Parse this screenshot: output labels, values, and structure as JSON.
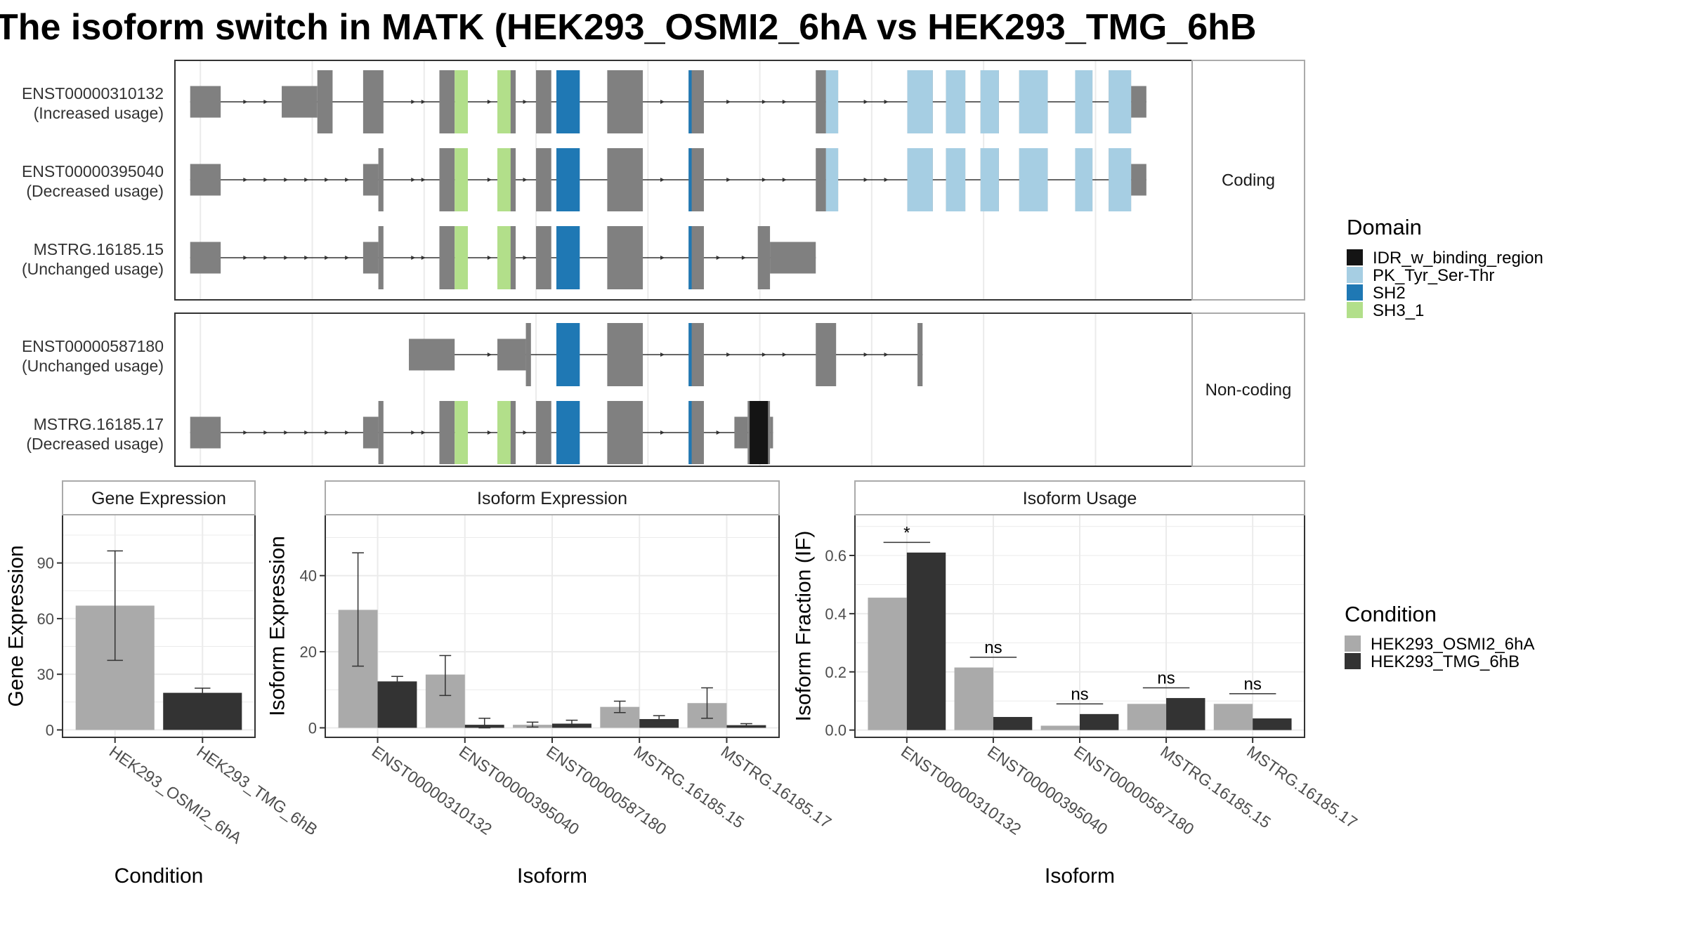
{
  "title": "The isoform switch in MATK (HEK293_OSMI2_6hA vs HEK293_TMG_6hB",
  "colors": {
    "exon": "#808080",
    "panel_border": "#333333",
    "strip_border": "#aaaaaa",
    "grid": "#ebebeb",
    "condition_a": "#aaaaaa",
    "condition_b": "#333333",
    "IDR_w_binding_region": "#141414",
    "PK_Tyr_Ser-Thr": "#a6cee3",
    "SH2": "#1f78b4",
    "SH3_1": "#b2df8a"
  },
  "structure": {
    "groups": [
      {
        "label": "Coding",
        "transcripts": [
          {
            "id": "ENST00000310132",
            "usage": "(Increased usage)",
            "exons": [
              [
                0.015,
                0.045,
                "t"
              ],
              [
                0.105,
                0.14,
                "t"
              ],
              [
                0.14,
                0.155,
                "c"
              ],
              [
                0.185,
                0.205,
                "c"
              ],
              [
                0.26,
                0.275,
                "c"
              ],
              [
                0.317,
                0.335,
                "c"
              ],
              [
                0.355,
                0.37,
                "c"
              ],
              [
                0.375,
                0.397,
                "c"
              ],
              [
                0.425,
                0.46,
                "c"
              ],
              [
                0.505,
                0.52,
                "c"
              ],
              [
                0.63,
                0.64,
                "c"
              ],
              [
                0.64,
                0.652,
                "c"
              ],
              [
                0.72,
                0.745,
                "c"
              ],
              [
                0.758,
                0.777,
                "c"
              ],
              [
                0.792,
                0.81,
                "c"
              ],
              [
                0.83,
                0.858,
                "c"
              ],
              [
                0.885,
                0.902,
                "c"
              ],
              [
                0.918,
                0.94,
                "c"
              ],
              [
                0.94,
                0.955,
                "t"
              ]
            ],
            "domains": [
              [
                0.275,
                0.288,
                "SH3_1"
              ],
              [
                0.317,
                0.33,
                "SH3_1"
              ],
              [
                0.375,
                0.398,
                "SH2"
              ],
              [
                0.505,
                0.508,
                "SH2"
              ],
              [
                0.64,
                0.652,
                "PK_Tyr_Ser-Thr"
              ],
              [
                0.72,
                0.745,
                "PK_Tyr_Ser-Thr"
              ],
              [
                0.758,
                0.777,
                "PK_Tyr_Ser-Thr"
              ],
              [
                0.792,
                0.81,
                "PK_Tyr_Ser-Thr"
              ],
              [
                0.83,
                0.858,
                "PK_Tyr_Ser-Thr"
              ],
              [
                0.885,
                0.902,
                "PK_Tyr_Ser-Thr"
              ],
              [
                0.918,
                0.94,
                "PK_Tyr_Ser-Thr"
              ]
            ],
            "arrows": [
              0.07,
              0.09,
              0.195,
              0.235,
              0.245,
              0.31,
              0.345,
              0.48,
              0.545,
              0.58,
              0.6,
              0.68,
              0.7
            ]
          },
          {
            "id": "ENST00000395040",
            "usage": "(Decreased usage)",
            "exons": [
              [
                0.015,
                0.045,
                "t"
              ],
              [
                0.185,
                0.2,
                "t"
              ],
              [
                0.2,
                0.205,
                "c"
              ],
              [
                0.26,
                0.275,
                "c"
              ],
              [
                0.317,
                0.335,
                "c"
              ],
              [
                0.355,
                0.37,
                "c"
              ],
              [
                0.375,
                0.397,
                "c"
              ],
              [
                0.425,
                0.46,
                "c"
              ],
              [
                0.505,
                0.52,
                "c"
              ],
              [
                0.63,
                0.64,
                "c"
              ],
              [
                0.64,
                0.652,
                "c"
              ],
              [
                0.72,
                0.745,
                "c"
              ],
              [
                0.758,
                0.777,
                "c"
              ],
              [
                0.792,
                0.81,
                "c"
              ],
              [
                0.83,
                0.858,
                "c"
              ],
              [
                0.885,
                0.902,
                "c"
              ],
              [
                0.918,
                0.94,
                "c"
              ],
              [
                0.94,
                0.955,
                "t"
              ]
            ],
            "domains": [
              [
                0.275,
                0.288,
                "SH3_1"
              ],
              [
                0.317,
                0.33,
                "SH3_1"
              ],
              [
                0.375,
                0.398,
                "SH2"
              ],
              [
                0.505,
                0.508,
                "SH2"
              ],
              [
                0.64,
                0.652,
                "PK_Tyr_Ser-Thr"
              ],
              [
                0.72,
                0.745,
                "PK_Tyr_Ser-Thr"
              ],
              [
                0.758,
                0.777,
                "PK_Tyr_Ser-Thr"
              ],
              [
                0.792,
                0.81,
                "PK_Tyr_Ser-Thr"
              ],
              [
                0.83,
                0.858,
                "PK_Tyr_Ser-Thr"
              ],
              [
                0.885,
                0.902,
                "PK_Tyr_Ser-Thr"
              ],
              [
                0.918,
                0.94,
                "PK_Tyr_Ser-Thr"
              ]
            ],
            "arrows": [
              0.07,
              0.09,
              0.11,
              0.13,
              0.15,
              0.17,
              0.235,
              0.245,
              0.31,
              0.345,
              0.48,
              0.545,
              0.58,
              0.6,
              0.68,
              0.7
            ]
          },
          {
            "id": "MSTRG.16185.15",
            "usage": "(Unchanged usage)",
            "exons": [
              [
                0.015,
                0.045,
                "t"
              ],
              [
                0.185,
                0.2,
                "t"
              ],
              [
                0.2,
                0.205,
                "c"
              ],
              [
                0.26,
                0.275,
                "c"
              ],
              [
                0.317,
                0.335,
                "c"
              ],
              [
                0.355,
                0.37,
                "c"
              ],
              [
                0.375,
                0.397,
                "c"
              ],
              [
                0.425,
                0.46,
                "c"
              ],
              [
                0.505,
                0.52,
                "c"
              ],
              [
                0.573,
                0.585,
                "c"
              ],
              [
                0.585,
                0.63,
                "t"
              ]
            ],
            "domains": [
              [
                0.275,
                0.288,
                "SH3_1"
              ],
              [
                0.317,
                0.33,
                "SH3_1"
              ],
              [
                0.375,
                0.398,
                "SH2"
              ],
              [
                0.505,
                0.508,
                "SH2"
              ]
            ],
            "arrows": [
              0.07,
              0.09,
              0.11,
              0.13,
              0.15,
              0.17,
              0.235,
              0.245,
              0.31,
              0.345,
              0.48,
              0.535,
              0.56
            ]
          }
        ]
      },
      {
        "label": "Non-coding",
        "transcripts": [
          {
            "id": "ENST00000587180",
            "usage": "(Unchanged usage)",
            "exons": [
              [
                0.23,
                0.275,
                "t"
              ],
              [
                0.317,
                0.345,
                "t"
              ],
              [
                0.345,
                0.35,
                "c"
              ],
              [
                0.375,
                0.397,
                "c"
              ],
              [
                0.425,
                0.46,
                "c"
              ],
              [
                0.505,
                0.52,
                "c"
              ],
              [
                0.63,
                0.65,
                "c"
              ],
              [
                0.73,
                0.735,
                "c"
              ]
            ],
            "domains": [
              [
                0.375,
                0.398,
                "SH2"
              ],
              [
                0.505,
                0.508,
                "SH2"
              ]
            ],
            "arrows": [
              0.31,
              0.48,
              0.545,
              0.58,
              0.6,
              0.68,
              0.7
            ]
          },
          {
            "id": "MSTRG.16185.17",
            "usage": "(Decreased usage)",
            "exons": [
              [
                0.015,
                0.045,
                "t"
              ],
              [
                0.185,
                0.2,
                "t"
              ],
              [
                0.2,
                0.205,
                "c"
              ],
              [
                0.26,
                0.275,
                "c"
              ],
              [
                0.317,
                0.335,
                "c"
              ],
              [
                0.355,
                0.37,
                "c"
              ],
              [
                0.375,
                0.397,
                "c"
              ],
              [
                0.425,
                0.46,
                "c"
              ],
              [
                0.505,
                0.52,
                "c"
              ],
              [
                0.55,
                0.563,
                "t"
              ],
              [
                0.563,
                0.585,
                "c"
              ],
              [
                0.585,
                0.588,
                "t"
              ]
            ],
            "domains": [
              [
                0.275,
                0.288,
                "SH3_1"
              ],
              [
                0.317,
                0.33,
                "SH3_1"
              ],
              [
                0.375,
                0.398,
                "SH2"
              ],
              [
                0.505,
                0.508,
                "SH2"
              ],
              [
                0.565,
                0.583,
                "IDR_w_binding_region"
              ]
            ],
            "arrows": [
              0.07,
              0.09,
              0.11,
              0.13,
              0.15,
              0.17,
              0.235,
              0.245,
              0.31,
              0.345,
              0.48,
              0.535
            ]
          }
        ]
      }
    ]
  },
  "domain_legend": {
    "title": "Domain",
    "entries": [
      "IDR_w_binding_region",
      "PK_Tyr_Ser-Thr",
      "SH2",
      "SH3_1"
    ]
  },
  "condition_legend": {
    "title": "Condition",
    "entries": [
      "HEK293_OSMI2_6hA",
      "HEK293_TMG_6hB"
    ]
  },
  "chart_data": [
    {
      "type": "bar",
      "title": "Gene Expression",
      "xlabel": "Condition",
      "ylabel": "Gene Expression",
      "categories": [
        "HEK293_OSMI2_6hA",
        "HEK293_TMG_6hB"
      ],
      "values": [
        67,
        20
      ],
      "error": [
        [
          37.5,
          96.5
        ],
        [
          18.5,
          22.5
        ]
      ],
      "ylim": [
        -4,
        116
      ],
      "yticks": [
        0,
        30,
        60,
        90
      ],
      "grid": true
    },
    {
      "type": "bar",
      "title": "Isoform Expression",
      "xlabel": "Isoform",
      "ylabel": "Isoform Expression",
      "categories": [
        "ENST00000310132",
        "ENST00000395040",
        "ENST00000587180",
        "MSTRG.16185.15",
        "MSTRG.16185.17"
      ],
      "series": [
        {
          "name": "HEK293_OSMI2_6hA",
          "values": [
            31,
            14,
            0.8,
            5.5,
            6.5
          ],
          "error": [
            [
              16.2,
              46
            ],
            [
              8.5,
              19
            ],
            [
              0.2,
              1.5
            ],
            [
              4,
              7
            ],
            [
              2.5,
              10.5
            ]
          ]
        },
        {
          "name": "HEK293_TMG_6hB",
          "values": [
            12.2,
            0.8,
            1.1,
            2.3,
            0.7
          ],
          "error": [
            [
              10.8,
              13.5
            ],
            [
              0,
              2.5
            ],
            [
              0.2,
              2
            ],
            [
              1.5,
              3.2
            ],
            [
              0.3,
              1.1
            ]
          ]
        }
      ],
      "ylim": [
        -2.5,
        56
      ],
      "yticks": [
        0,
        20,
        40
      ],
      "grid": true
    },
    {
      "type": "bar",
      "title": "Isoform Usage",
      "xlabel": "Isoform",
      "ylabel": "Isoform Fraction (IF)",
      "categories": [
        "ENST00000310132",
        "ENST00000395040",
        "ENST00000587180",
        "MSTRG.16185.15",
        "MSTRG.16185.17"
      ],
      "series": [
        {
          "name": "HEK293_OSMI2_6hA",
          "values": [
            0.455,
            0.215,
            0.015,
            0.09,
            0.09
          ]
        },
        {
          "name": "HEK293_TMG_6hB",
          "values": [
            0.61,
            0.045,
            0.055,
            0.11,
            0.04
          ]
        }
      ],
      "significance": [
        {
          "label": "*",
          "y": 0.645
        },
        {
          "label": "ns",
          "y": 0.25
        },
        {
          "label": "ns",
          "y": 0.09
        },
        {
          "label": "ns",
          "y": 0.145
        },
        {
          "label": "ns",
          "y": 0.125
        }
      ],
      "ylim": [
        -0.025,
        0.74
      ],
      "yticks": [
        0.0,
        0.2,
        0.4,
        0.6
      ],
      "yticklabels": [
        "0.0",
        "0.2",
        "0.4",
        "0.6"
      ],
      "grid": true
    }
  ]
}
